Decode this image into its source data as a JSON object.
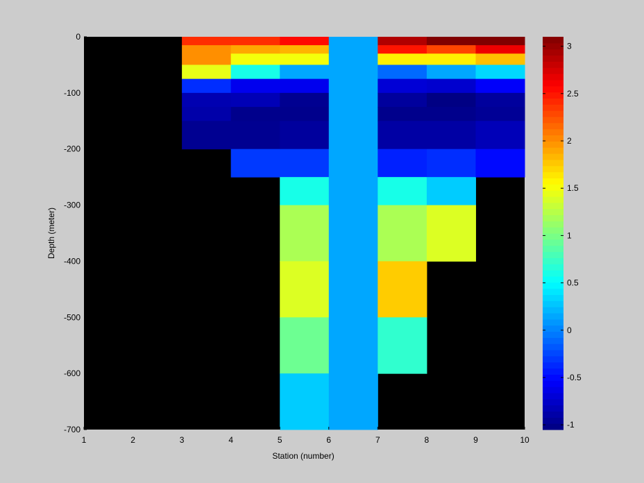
{
  "chart_data": {
    "type": "heatmap",
    "xlabel": "Station (number)",
    "ylabel": "Depth (meter)",
    "xlim": [
      1,
      10
    ],
    "ylim": [
      -700,
      0
    ],
    "x_ticks": [
      1,
      2,
      3,
      4,
      5,
      6,
      7,
      8,
      9,
      10
    ],
    "y_ticks": [
      0,
      -100,
      -200,
      -300,
      -400,
      -500,
      -600,
      -700
    ],
    "missing_color": "#000000",
    "colormap": "jet",
    "colorbar": {
      "range": [
        -1.05,
        3.1
      ],
      "ticks": [
        3,
        2.5,
        2,
        1.5,
        1,
        0.5,
        0,
        -0.5,
        -1
      ],
      "placement": "right"
    },
    "cells": [
      {
        "x": [
          3,
          4
        ],
        "y": [
          0,
          -15
        ],
        "value": 2.4
      },
      {
        "x": [
          3,
          4
        ],
        "y": [
          -15,
          -50
        ],
        "value": 2.0
      },
      {
        "x": [
          3,
          4
        ],
        "y": [
          -50,
          -75
        ],
        "value": 1.45
      },
      {
        "x": [
          3,
          4
        ],
        "y": [
          -75,
          -100
        ],
        "value": -0.35
      },
      {
        "x": [
          3,
          4
        ],
        "y": [
          -100,
          -125
        ],
        "value": -0.85
      },
      {
        "x": [
          3,
          4
        ],
        "y": [
          -125,
          -150
        ],
        "value": -0.88
      },
      {
        "x": [
          3,
          4
        ],
        "y": [
          -150,
          -200
        ],
        "value": -0.98
      },
      {
        "x": [
          4,
          5
        ],
        "y": [
          0,
          -15
        ],
        "value": 2.4
      },
      {
        "x": [
          4,
          5
        ],
        "y": [
          -15,
          -30
        ],
        "value": 1.9
      },
      {
        "x": [
          4,
          5
        ],
        "y": [
          -30,
          -50
        ],
        "value": 1.5
      },
      {
        "x": [
          4,
          5
        ],
        "y": [
          -50,
          -75
        ],
        "value": 0.6
      },
      {
        "x": [
          4,
          5
        ],
        "y": [
          -75,
          -100
        ],
        "value": -0.6
      },
      {
        "x": [
          4,
          5
        ],
        "y": [
          -100,
          -125
        ],
        "value": -0.83
      },
      {
        "x": [
          4,
          5
        ],
        "y": [
          -125,
          -150
        ],
        "value": -1.0
      },
      {
        "x": [
          4,
          5
        ],
        "y": [
          -150,
          -200
        ],
        "value": -0.98
      },
      {
        "x": [
          4,
          5
        ],
        "y": [
          -200,
          -250
        ],
        "value": -0.3
      },
      {
        "x": [
          5,
          6
        ],
        "y": [
          0,
          -15
        ],
        "value": 2.55
      },
      {
        "x": [
          5,
          6
        ],
        "y": [
          -15,
          -30
        ],
        "value": 1.85
      },
      {
        "x": [
          5,
          6
        ],
        "y": [
          -30,
          -50
        ],
        "value": 1.5
      },
      {
        "x": [
          5,
          6
        ],
        "y": [
          -50,
          -75
        ],
        "value": 0.15
      },
      {
        "x": [
          5,
          6
        ],
        "y": [
          -75,
          -100
        ],
        "value": -0.6
      },
      {
        "x": [
          5,
          6
        ],
        "y": [
          -100,
          -125
        ],
        "value": -0.98
      },
      {
        "x": [
          5,
          6
        ],
        "y": [
          -125,
          -150
        ],
        "value": -1.0
      },
      {
        "x": [
          5,
          6
        ],
        "y": [
          -150,
          -200
        ],
        "value": -0.93
      },
      {
        "x": [
          5,
          6
        ],
        "y": [
          -200,
          -250
        ],
        "value": -0.3
      },
      {
        "x": [
          5,
          6
        ],
        "y": [
          -250,
          -300
        ],
        "value": 0.6
      },
      {
        "x": [
          5,
          6
        ],
        "y": [
          -300,
          -400
        ],
        "value": 1.2
      },
      {
        "x": [
          5,
          6
        ],
        "y": [
          -400,
          -500
        ],
        "value": 1.4
      },
      {
        "x": [
          5,
          6
        ],
        "y": [
          -500,
          -600
        ],
        "value": 0.95
      },
      {
        "x": [
          5,
          6
        ],
        "y": [
          -600,
          -700
        ],
        "value": 0.3
      },
      {
        "x": [
          6,
          7
        ],
        "y": [
          0,
          -700
        ],
        "value": 0.15
      },
      {
        "x": [
          7,
          8
        ],
        "y": [
          0,
          -15
        ],
        "value": 2.9
      },
      {
        "x": [
          7,
          8
        ],
        "y": [
          -15,
          -30
        ],
        "value": 2.5
      },
      {
        "x": [
          7,
          8
        ],
        "y": [
          -30,
          -50
        ],
        "value": 1.6
      },
      {
        "x": [
          7,
          8
        ],
        "y": [
          -50,
          -75
        ],
        "value": -0.1
      },
      {
        "x": [
          7,
          8
        ],
        "y": [
          -75,
          -100
        ],
        "value": -0.7
      },
      {
        "x": [
          7,
          8
        ],
        "y": [
          -100,
          -125
        ],
        "value": -0.93
      },
      {
        "x": [
          7,
          8
        ],
        "y": [
          -125,
          -150
        ],
        "value": -1.0
      },
      {
        "x": [
          7,
          8
        ],
        "y": [
          -150,
          -200
        ],
        "value": -0.9
      },
      {
        "x": [
          7,
          8
        ],
        "y": [
          -200,
          -250
        ],
        "value": -0.4
      },
      {
        "x": [
          7,
          8
        ],
        "y": [
          -250,
          -300
        ],
        "value": 0.6
      },
      {
        "x": [
          7,
          8
        ],
        "y": [
          -300,
          -400
        ],
        "value": 1.2
      },
      {
        "x": [
          7,
          8
        ],
        "y": [
          -400,
          -500
        ],
        "value": 1.75
      },
      {
        "x": [
          7,
          8
        ],
        "y": [
          -500,
          -600
        ],
        "value": 0.7
      },
      {
        "x": [
          8,
          9
        ],
        "y": [
          0,
          -15
        ],
        "value": 3.1
      },
      {
        "x": [
          8,
          9
        ],
        "y": [
          -15,
          -30
        ],
        "value": 2.3
      },
      {
        "x": [
          8,
          9
        ],
        "y": [
          -30,
          -50
        ],
        "value": 1.6
      },
      {
        "x": [
          8,
          9
        ],
        "y": [
          -50,
          -75
        ],
        "value": 0.15
      },
      {
        "x": [
          8,
          9
        ],
        "y": [
          -75,
          -100
        ],
        "value": -0.73
      },
      {
        "x": [
          8,
          9
        ],
        "y": [
          -100,
          -125
        ],
        "value": -1.03
      },
      {
        "x": [
          8,
          9
        ],
        "y": [
          -125,
          -150
        ],
        "value": -1.0
      },
      {
        "x": [
          8,
          9
        ],
        "y": [
          -150,
          -200
        ],
        "value": -0.9
      },
      {
        "x": [
          8,
          9
        ],
        "y": [
          -200,
          -250
        ],
        "value": -0.35
      },
      {
        "x": [
          8,
          9
        ],
        "y": [
          -250,
          -300
        ],
        "value": 0.3
      },
      {
        "x": [
          8,
          9
        ],
        "y": [
          -300,
          -400
        ],
        "value": 1.4
      },
      {
        "x": [
          9,
          10
        ],
        "y": [
          0,
          -15
        ],
        "value": 3.1
      },
      {
        "x": [
          9,
          10
        ],
        "y": [
          -15,
          -30
        ],
        "value": 2.65
      },
      {
        "x": [
          9,
          10
        ],
        "y": [
          -30,
          -50
        ],
        "value": 1.8
      },
      {
        "x": [
          9,
          10
        ],
        "y": [
          -50,
          -75
        ],
        "value": 0.35
      },
      {
        "x": [
          9,
          10
        ],
        "y": [
          -75,
          -100
        ],
        "value": -0.55
      },
      {
        "x": [
          9,
          10
        ],
        "y": [
          -100,
          -125
        ],
        "value": -0.93
      },
      {
        "x": [
          9,
          10
        ],
        "y": [
          -125,
          -150
        ],
        "value": -0.96
      },
      {
        "x": [
          9,
          10
        ],
        "y": [
          -150,
          -200
        ],
        "value": -0.82
      },
      {
        "x": [
          9,
          10
        ],
        "y": [
          -200,
          -250
        ],
        "value": -0.5
      }
    ]
  }
}
